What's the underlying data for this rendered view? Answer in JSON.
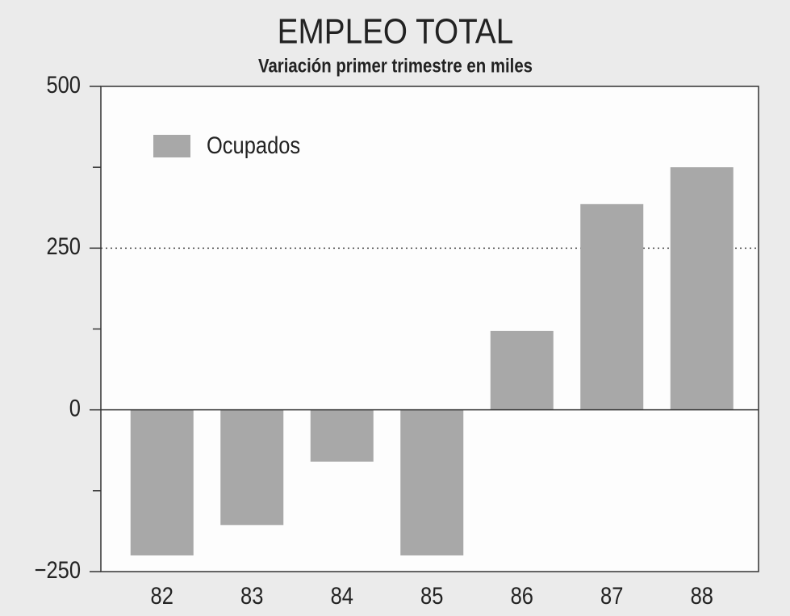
{
  "chart_data": {
    "type": "bar",
    "title": "EMPLEO TOTAL",
    "subtitle": "Variación primer trimestre en miles",
    "categories": [
      "82",
      "83",
      "84",
      "85",
      "86",
      "87",
      "88"
    ],
    "series": [
      {
        "name": "Ocupados",
        "color": "#a8a8a8",
        "values": [
          -225,
          -178,
          -80,
          -225,
          122,
          318,
          375
        ]
      }
    ],
    "ylim": [
      -250,
      500
    ],
    "yticks": [
      {
        "value": -250,
        "label": "−250"
      },
      0,
      250,
      500
    ],
    "minor_yticks": [
      -125,
      125,
      375
    ],
    "grid": "dotted",
    "legend": "upper left"
  }
}
